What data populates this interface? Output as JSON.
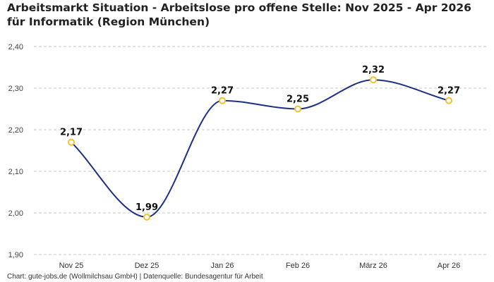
{
  "chart_data": {
    "type": "line",
    "title": "Arbeitsmarkt Situation - Arbeitslose pro offene Stelle: Nov 2025 - Apr 2026 für Informatik (Region München)",
    "categories": [
      "Nov 25",
      "Dez 25",
      "Jan 26",
      "Feb 26",
      "März 26",
      "Apr 26"
    ],
    "values": [
      2.17,
      1.99,
      2.27,
      2.25,
      2.32,
      2.27
    ],
    "data_labels": [
      "2,17",
      "1,99",
      "2,27",
      "2,25",
      "2,32",
      "2,27"
    ],
    "yticks": [
      1.9,
      2.0,
      2.1,
      2.2,
      2.3,
      2.4
    ],
    "ytick_labels": [
      "1,90",
      "2,00",
      "2,10",
      "2,20",
      "2,30",
      "2,40"
    ],
    "ylim": [
      1.9,
      2.4
    ],
    "grid": true,
    "line_color": "#1f2f86",
    "marker_color": "#f2c12e",
    "source": "Chart: gute-jobs.de (Wollmilchsau GmbH) | Datenquelle: Bundesagentur für Arbeit"
  }
}
